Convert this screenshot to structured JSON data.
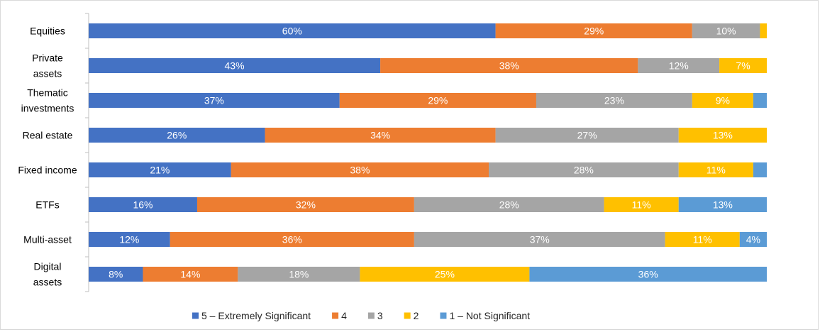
{
  "chart_data": {
    "type": "bar",
    "orientation": "horizontal",
    "stacked": true,
    "categories": [
      "Equities",
      "Private assets",
      "Thematic investments",
      "Real estate",
      "Fixed income",
      "ETFs",
      "Multi-asset",
      "Digital assets"
    ],
    "series": [
      {
        "name": "5 – Extremely Significant",
        "color": "#4472C4",
        "values": [
          60,
          43,
          37,
          26,
          21,
          16,
          12,
          8
        ]
      },
      {
        "name": "4",
        "color": "#ED7D31",
        "values": [
          29,
          38,
          29,
          34,
          38,
          32,
          36,
          14
        ]
      },
      {
        "name": "3",
        "color": "#A5A5A5",
        "values": [
          10,
          12,
          23,
          27,
          28,
          28,
          37,
          18
        ]
      },
      {
        "name": "2",
        "color": "#FFC000",
        "values": [
          1,
          7,
          9,
          13,
          11,
          11,
          11,
          25
        ]
      },
      {
        "name": "1 – Not Significant",
        "color": "#5B9BD5",
        "values": [
          0,
          1,
          3,
          0,
          2,
          13,
          4,
          36
        ]
      }
    ],
    "data_labels": [
      [
        "60%",
        "29%",
        "10%",
        "",
        ""
      ],
      [
        "43%",
        "38%",
        "12%",
        "7%",
        ""
      ],
      [
        "37%",
        "29%",
        "23%",
        "9%",
        ""
      ],
      [
        "26%",
        "34%",
        "27%",
        "13%",
        ""
      ],
      [
        "21%",
        "38%",
        "28%",
        "11%",
        ""
      ],
      [
        "16%",
        "32%",
        "28%",
        "11%",
        "13%"
      ],
      [
        "12%",
        "36%",
        "37%",
        "11%",
        "4%"
      ],
      [
        "8%",
        "14%",
        "18%",
        "25%",
        "36%"
      ]
    ],
    "xlim": [
      0,
      100
    ],
    "grid": false,
    "legend_position": "bottom"
  }
}
